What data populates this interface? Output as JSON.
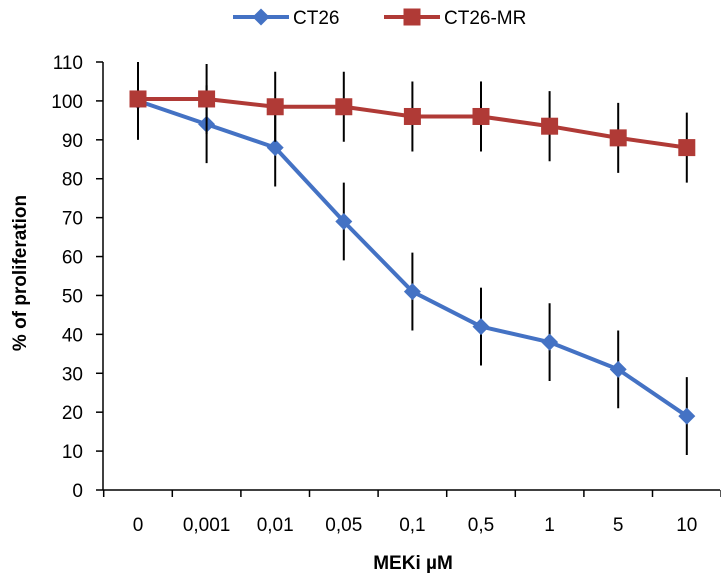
{
  "chart_data": {
    "type": "line",
    "title": "",
    "xlabel": "MEKi µM",
    "ylabel": "% of proliferation",
    "categories": [
      "0",
      "0,001",
      "0,01",
      "0,05",
      "0,1",
      "0,5",
      "1",
      "5",
      "10"
    ],
    "ylim": [
      0,
      110
    ],
    "yticks": [
      0,
      10,
      20,
      30,
      40,
      50,
      60,
      70,
      80,
      90,
      100,
      110
    ],
    "grid": false,
    "legend_position": "top",
    "series": [
      {
        "name": "CT26",
        "color": "#4472C4",
        "marker": "diamond",
        "values": [
          100,
          94,
          88,
          69,
          51,
          42,
          38,
          31,
          19
        ],
        "errors": [
          10,
          10,
          10,
          10,
          10,
          10,
          10,
          10,
          10
        ]
      },
      {
        "name": "CT26-MR",
        "color": "#B03A36",
        "marker": "square",
        "values": [
          100.5,
          100.5,
          98.5,
          98.5,
          96,
          96,
          93.5,
          90.5,
          88
        ],
        "errors": [
          9,
          9,
          9,
          9,
          9,
          9,
          9,
          9,
          9
        ]
      }
    ]
  }
}
